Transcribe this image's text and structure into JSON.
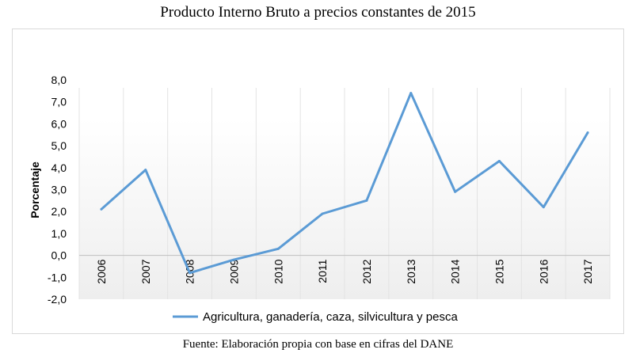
{
  "page": {
    "title": "Producto Interno Bruto a precios constantes de 2015",
    "source_note": "Fuente: Elaboración propia con base en cifras del DANE"
  },
  "chart_data": {
    "type": "line",
    "title": "Producto Interno Bruto a precios constantes de 2015",
    "xlabel": "",
    "ylabel": "Porcentaje",
    "x": [
      "2006",
      "2007",
      "2008",
      "2009",
      "2010",
      "2011",
      "2012",
      "2013",
      "2014",
      "2015",
      "2016",
      "2017"
    ],
    "ylim": [
      -2.0,
      8.0
    ],
    "yticks": [
      "-2,0",
      "-1,0",
      "0,0",
      "1,0",
      "2,0",
      "3,0",
      "4,0",
      "5,0",
      "6,0",
      "7,0",
      "8,0"
    ],
    "ytick_values": [
      -2,
      -1,
      0,
      1,
      2,
      3,
      4,
      5,
      6,
      7,
      8
    ],
    "series": [
      {
        "name": "Agricultura, ganadería, caza, silvicultura y pesca",
        "color": "#5b9bd5",
        "values": [
          2.1,
          3.9,
          -0.8,
          -0.2,
          0.3,
          1.9,
          2.5,
          7.4,
          2.9,
          4.3,
          2.2,
          5.6
        ]
      }
    ],
    "grid": "vertical",
    "legend_position": "bottom"
  }
}
